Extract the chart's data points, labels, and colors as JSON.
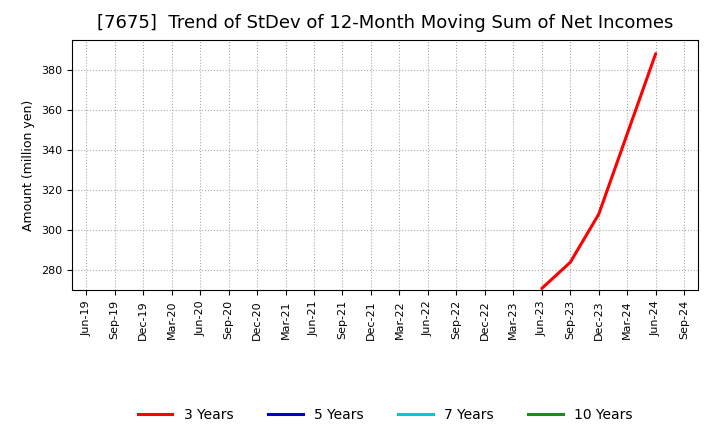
{
  "title": "[7675]  Trend of StDev of 12-Month Moving Sum of Net Incomes",
  "ylabel": "Amount (million yen)",
  "background_color": "#ffffff",
  "plot_bg_color": "#ffffff",
  "grid_color": "#aaaaaa",
  "ylim": [
    270,
    395
  ],
  "yticks": [
    280,
    300,
    320,
    340,
    360,
    380
  ],
  "series": {
    "3_years": {
      "color": "#ff0000",
      "label": "3 Years",
      "x_indices": [
        16,
        17,
        18,
        19,
        20
      ],
      "values": [
        271,
        284,
        308,
        348,
        388
      ]
    },
    "5_years": {
      "color": "#0000cc",
      "label": "5 Years",
      "x_indices": [],
      "values": []
    },
    "7_years": {
      "color": "#00cccc",
      "label": "7 Years",
      "x_indices": [],
      "values": []
    },
    "10_years": {
      "color": "#228822",
      "label": "10 Years",
      "x_indices": [],
      "values": []
    }
  },
  "xtick_labels": [
    "Jun-19",
    "Sep-19",
    "Dec-19",
    "Mar-20",
    "Jun-20",
    "Sep-20",
    "Dec-20",
    "Mar-21",
    "Jun-21",
    "Sep-21",
    "Dec-21",
    "Mar-22",
    "Jun-22",
    "Sep-22",
    "Dec-22",
    "Mar-23",
    "Jun-23",
    "Sep-23",
    "Dec-23",
    "Mar-24",
    "Jun-24",
    "Sep-24"
  ],
  "title_fontsize": 13,
  "axis_fontsize": 9,
  "tick_fontsize": 8,
  "legend_fontsize": 10,
  "linewidth": 2.2
}
